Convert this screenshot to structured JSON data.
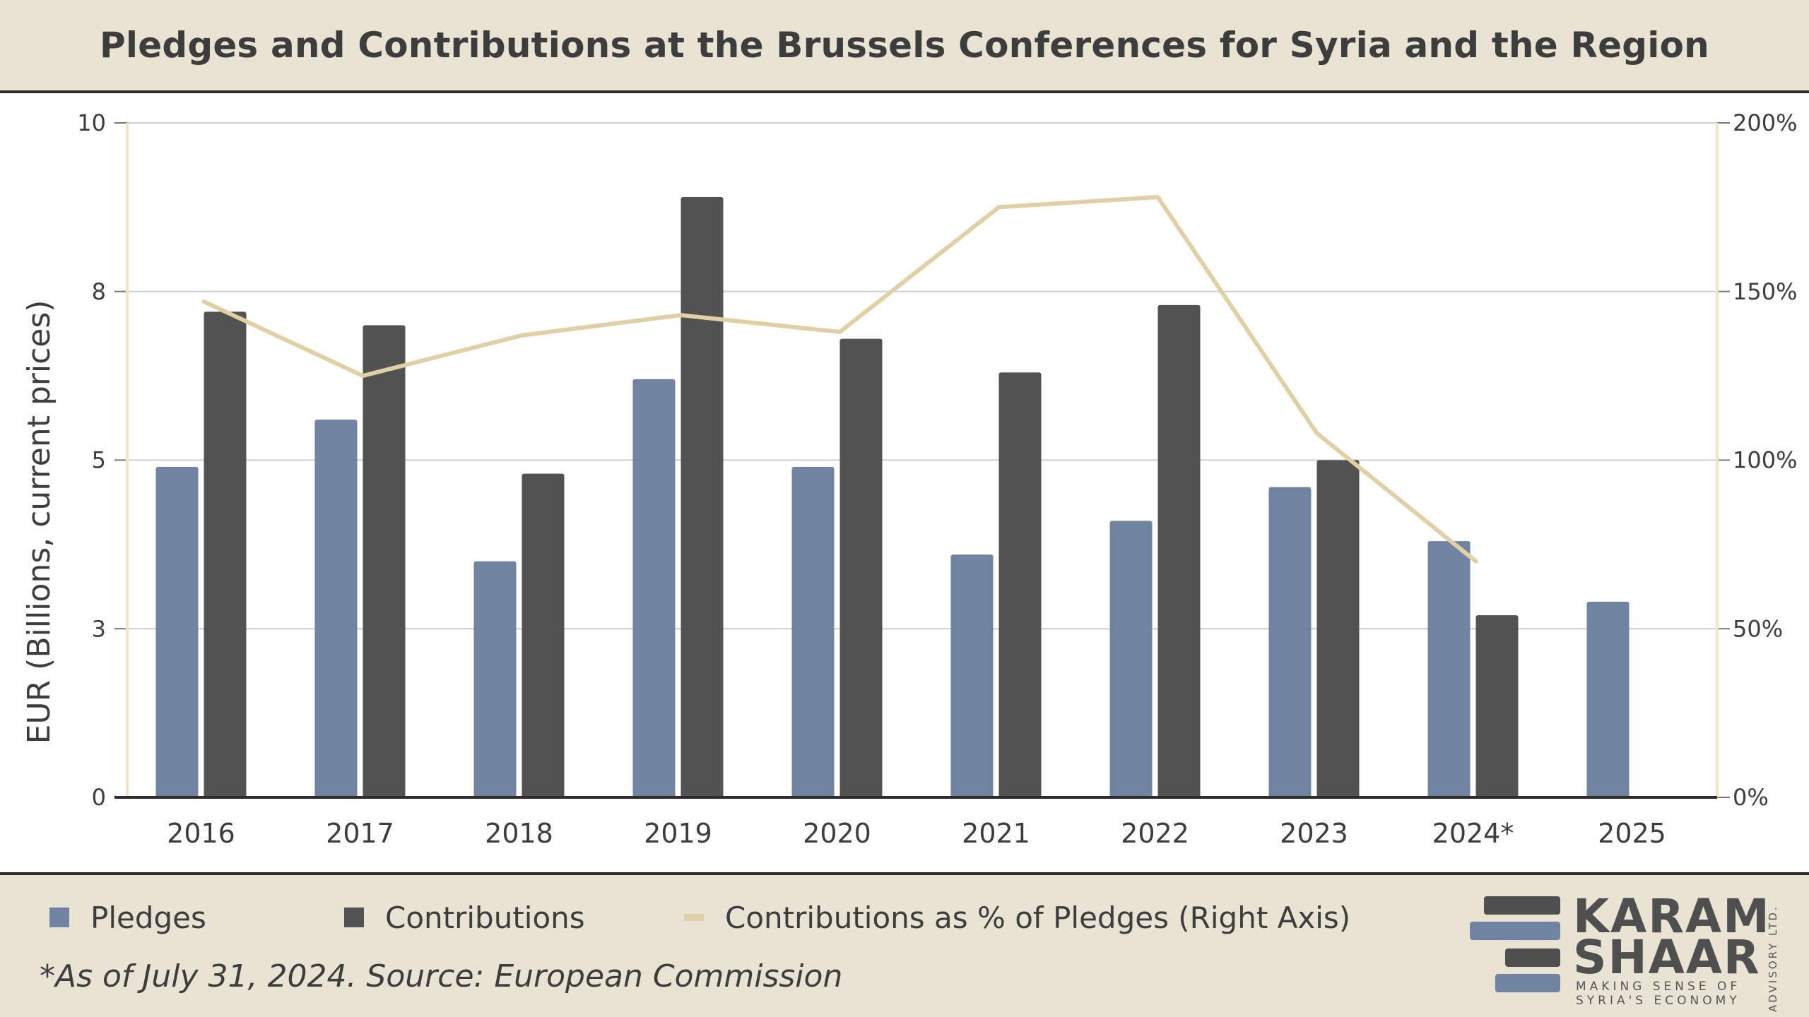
{
  "header": {
    "title": "Pledges and Contributions at the Brussels Conferences for Syria and the Region"
  },
  "chart_data": {
    "type": "bar",
    "categories": [
      "2016",
      "2017",
      "2018",
      "2019",
      "2020",
      "2021",
      "2022",
      "2023",
      "2024*",
      "2025"
    ],
    "ylabel": "EUR (Billions, current prices)",
    "ylim": [
      0,
      10
    ],
    "y_ticks": [
      "0",
      "3",
      "5",
      "8",
      "10"
    ],
    "y_tick_values": [
      0,
      2.5,
      5,
      7.5,
      10
    ],
    "y2lim": [
      0,
      2
    ],
    "y2_ticks": [
      "0%",
      "50%",
      "100%",
      "150%",
      "200%"
    ],
    "y2_tick_values": [
      0,
      0.5,
      1,
      1.5,
      2
    ],
    "grid": true,
    "legend_position": "bottom",
    "series": [
      {
        "name": "Pledges",
        "kind": "bar",
        "color": "#7083a0",
        "values": [
          4.9,
          5.6,
          3.5,
          6.2,
          4.9,
          3.6,
          4.1,
          4.6,
          3.8,
          2.9
        ]
      },
      {
        "name": "Contributions",
        "kind": "bar",
        "color": "#525252",
        "values": [
          7.2,
          7.0,
          4.8,
          8.9,
          6.8,
          6.3,
          7.3,
          5.0,
          2.7,
          null
        ]
      },
      {
        "name": "Contributions as % of Pledges (Right Axis)",
        "kind": "line",
        "axis": "right",
        "color": "#dfd0a6",
        "values": [
          1.47,
          1.25,
          1.37,
          1.43,
          1.38,
          1.75,
          1.78,
          1.08,
          0.7,
          null
        ]
      }
    ]
  },
  "legend": {
    "pledges": "Pledges",
    "contributions": "Contributions",
    "ratio": "Contributions as % of Pledges (Right Axis)"
  },
  "footer": {
    "source_note": "*As of July 31, 2024. Source: European Commission"
  },
  "logo": {
    "word1": "KARAM",
    "word2": "SHAAR",
    "tagline1": "MAKING SENSE OF",
    "tagline2": "SYRIA'S ECONOMY",
    "side_text": "ADVISORY LTD."
  },
  "colors": {
    "band": "#e9e3d4",
    "pledges": "#7083a0",
    "contributions": "#525252",
    "ratio_line": "#dfd0a6",
    "text": "#3d3d3d"
  }
}
